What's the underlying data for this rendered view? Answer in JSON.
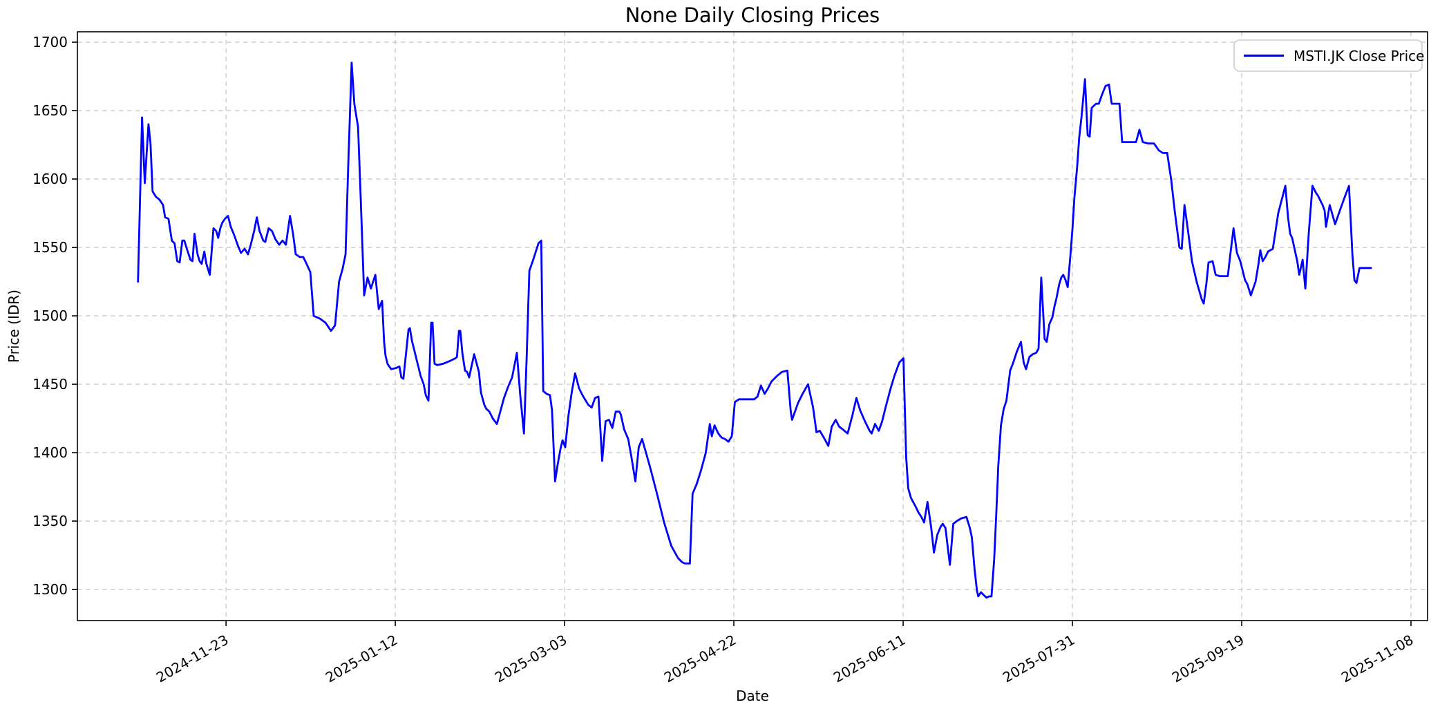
{
  "page": {
    "title": "None Daily Closing Prices"
  },
  "chart_data": {
    "type": "line",
    "title": "None Daily Closing Prices",
    "xlabel": "Date",
    "ylabel": "Price (IDR)",
    "grid": {
      "visible": true,
      "style": "dashed",
      "color": "#c9c9c9"
    },
    "line_color": "#0000ff",
    "legend": {
      "position": "upper right",
      "entries": [
        {
          "label": "MSTI.JK Close Price",
          "color": "#0000ff"
        }
      ]
    },
    "axes": {
      "x_start_date": "2024-10-28",
      "x_tick_labels": [
        "2024-11-23",
        "2025-01-12",
        "2025-03-03",
        "2025-04-22",
        "2025-06-11",
        "2025-07-31",
        "2025-09-19",
        "2025-11-08"
      ],
      "x_tick_offsets": [
        26,
        76,
        126,
        176,
        226,
        276,
        326,
        376
      ],
      "x_tick_rotation_deg": 30,
      "xlim_days": [
        -17.9,
        380.9
      ],
      "y_ticks": [
        1300,
        1350,
        1400,
        1450,
        1500,
        1550,
        1600,
        1650,
        1700
      ],
      "ylim": [
        1277.3,
        1707.6
      ]
    },
    "series": [
      {
        "name": "MSTI.JK Close Price",
        "color": "#0000ff",
        "x_days_from_start": [
          0,
          1.2,
          2,
          3.1,
          3.7,
          4.3,
          5.3,
          6.3,
          7.4,
          8,
          9,
          10,
          10.8,
          11.6,
          12.3,
          13.1,
          13.7,
          14.3,
          15.5,
          16.1,
          16.7,
          17.6,
          18.2,
          18.8,
          19.6,
          20.2,
          21.2,
          22.3,
          23.1,
          23.7,
          24.3,
          24.9,
          25.7,
          26.6,
          27.4,
          28.4,
          29.4,
          30.4,
          31.5,
          32.5,
          33.3,
          34.3,
          35.1,
          35.9,
          37,
          37.6,
          38.6,
          39.6,
          40.6,
          41.7,
          42.7,
          43.7,
          44.9,
          45.8,
          46.6,
          47.8,
          48.8,
          49.6,
          50.9,
          51.9,
          53.7,
          55.4,
          57,
          58.2,
          59.4,
          60.5,
          61.3,
          62.1,
          63.1,
          63.9,
          65,
          65.8,
          66.8,
          67.8,
          68.8,
          70.1,
          71.1,
          72.1,
          72.7,
          73.1,
          73.7,
          74.8,
          76.4,
          77.2,
          77.8,
          78.4,
          79.9,
          80.3,
          80.9,
          82.3,
          82.9,
          83.5,
          84.4,
          85,
          85.8,
          86.6,
          87,
          87.6,
          88.4,
          90.1,
          92.1,
          93.8,
          94.2,
          94.8,
          95.2,
          95.8,
          96.6,
          97.2,
          97.8,
          99.3,
          100.7,
          101.3,
          102.3,
          102.9,
          103.8,
          104.8,
          106,
          107,
          108.1,
          109.3,
          110.5,
          111.3,
          111.9,
          112.9,
          114,
          114.8,
          115.6,
          116.6,
          118.3,
          119.1,
          119.7,
          120.7,
          121.7,
          122.3,
          123.2,
          124,
          124.8,
          125.4,
          126.2,
          127.2,
          128.1,
          129.1,
          130.3,
          131.3,
          132,
          133,
          134,
          135,
          136,
          137.1,
          138.1,
          139.1,
          140.1,
          141.1,
          142.2,
          142.6,
          143.6,
          144.8,
          145.8,
          146.9,
          147.9,
          148.9,
          151.3,
          153.4,
          155.4,
          157.5,
          159.5,
          160.7,
          161.5,
          163,
          163.8,
          165,
          166.3,
          167.7,
          168.9,
          169.5,
          170.3,
          171.4,
          172.4,
          173.4,
          174.4,
          175.4,
          176.3,
          177.5,
          178.9,
          180.6,
          182,
          183,
          184,
          185.1,
          186.1,
          187.1,
          188.7,
          190.2,
          191.8,
          192.8,
          193.2,
          194.9,
          196.3,
          197.9,
          199.4,
          200.4,
          201.4,
          202.8,
          203.9,
          204.9,
          206.1,
          207.1,
          208.2,
          209.6,
          211,
          212.2,
          213.3,
          214.7,
          216.1,
          216.7,
          217.7,
          218.8,
          219.8,
          220.8,
          222.2,
          223.4,
          224.9,
          226.1,
          226.9,
          227.5,
          228.3,
          229.6,
          230.6,
          231.4,
          232.2,
          233.2,
          234.3,
          235.1,
          236.1,
          237.1,
          237.7,
          238.5,
          239.8,
          240.8,
          241.8,
          243.2,
          244.7,
          245.7,
          246.3,
          247.1,
          247.8,
          248.2,
          249,
          249.8,
          250.6,
          251.4,
          252.1,
          252.9,
          253.5,
          254.1,
          254.9,
          255.7,
          256.5,
          257.6,
          258.4,
          259.6,
          260.8,
          261.6,
          262.3,
          263.3,
          264.3,
          265.3,
          266,
          266.8,
          267.8,
          268.4,
          269.2,
          270.1,
          270.7,
          271.3,
          272.1,
          272.7,
          273.3,
          274,
          274.6,
          275.4,
          276,
          276.6,
          277.4,
          278,
          278.7,
          279.7,
          280.5,
          281.1,
          281.7,
          282.1,
          283,
          283.8,
          284.8,
          285.8,
          286.8,
          287.6,
          288.6,
          289.9,
          290.7,
          292.3,
          294,
          294.8,
          295.8,
          296.8,
          298.4,
          300.1,
          301.5,
          302.7,
          304,
          305.2,
          306.2,
          307.6,
          308.3,
          309.1,
          310.1,
          311.3,
          312.7,
          314.2,
          314.8,
          315.6,
          316.2,
          317.4,
          318.3,
          319.5,
          320.9,
          321.9,
          322.7,
          323.6,
          324.6,
          325.6,
          327,
          327.7,
          328.7,
          330.1,
          330.9,
          331.5,
          332.2,
          333,
          333.8,
          335.2,
          336.8,
          338.9,
          339.7,
          340.3,
          340.9,
          342.4,
          343,
          344,
          344.8,
          345.8,
          346.9,
          347.9,
          348.5,
          349.9,
          350.5,
          350.9,
          352,
          352.8,
          353.6,
          355,
          356.3,
          357.7,
          358.7,
          359.3,
          359.9,
          360.8,
          361.8,
          362.8,
          364.2
        ],
        "close_idr": [
          1525,
          1645,
          1597,
          1640,
          1626,
          1591,
          1587,
          1585,
          1581,
          1572,
          1571,
          1555,
          1553,
          1540,
          1539,
          1555,
          1555,
          1550,
          1541,
          1540,
          1560,
          1545,
          1540,
          1538,
          1547,
          1538,
          1530,
          1564,
          1562,
          1557,
          1564,
          1568,
          1571,
          1573,
          1565,
          1559,
          1552,
          1546,
          1549,
          1545,
          1552,
          1562,
          1572,
          1562,
          1555,
          1554,
          1564,
          1562,
          1556,
          1552,
          1555,
          1552,
          1573,
          1560,
          1545,
          1543,
          1543,
          1539,
          1532,
          1500,
          1498,
          1495,
          1489,
          1493,
          1525,
          1535,
          1545,
          1610,
          1685,
          1655,
          1638,
          1585,
          1515,
          1528,
          1520,
          1530,
          1505,
          1511,
          1481,
          1471,
          1465,
          1461,
          1462,
          1463,
          1455,
          1454,
          1490,
          1491,
          1482,
          1468,
          1462,
          1456,
          1450,
          1442,
          1438,
          1495,
          1495,
          1465,
          1464,
          1465,
          1467,
          1469,
          1470,
          1489,
          1489,
          1473,
          1460,
          1459,
          1455,
          1472,
          1459,
          1444,
          1435,
          1432,
          1430,
          1425,
          1421,
          1430,
          1440,
          1448,
          1455,
          1465,
          1473,
          1442,
          1414,
          1470,
          1533,
          1540,
          1553,
          1555,
          1445,
          1443,
          1442,
          1431,
          1379,
          1392,
          1403,
          1409,
          1404,
          1428,
          1444,
          1458,
          1447,
          1442,
          1439,
          1435,
          1433,
          1440,
          1441,
          1394,
          1423,
          1424,
          1418,
          1430,
          1430,
          1428,
          1417,
          1410,
          1396,
          1379,
          1404,
          1410,
          1389,
          1369,
          1349,
          1332,
          1323,
          1320,
          1319,
          1319,
          1370,
          1377,
          1387,
          1400,
          1421,
          1412,
          1420,
          1414,
          1411,
          1410,
          1408,
          1412,
          1437,
          1439,
          1439,
          1439,
          1439,
          1441,
          1449,
          1443,
          1447,
          1452,
          1456,
          1459,
          1460,
          1430,
          1424,
          1436,
          1443,
          1450,
          1433,
          1415,
          1416,
          1410,
          1405,
          1419,
          1424,
          1419,
          1417,
          1414,
          1427,
          1440,
          1431,
          1423,
          1416,
          1414,
          1421,
          1416,
          1423,
          1433,
          1446,
          1456,
          1466,
          1469,
          1397,
          1374,
          1367,
          1361,
          1356,
          1353,
          1349,
          1364,
          1345,
          1327,
          1340,
          1346,
          1348,
          1345,
          1318,
          1348,
          1350,
          1352,
          1353,
          1345,
          1338,
          1315,
          1299,
          1295,
          1298,
          1296,
          1294,
          1295,
          1295,
          1322,
          1355,
          1390,
          1420,
          1432,
          1438,
          1460,
          1465,
          1474,
          1481,
          1466,
          1461,
          1470,
          1472,
          1473,
          1476,
          1528,
          1483,
          1481,
          1494,
          1499,
          1507,
          1513,
          1523,
          1528,
          1530,
          1526,
          1521,
          1544,
          1563,
          1587,
          1609,
          1630,
          1646,
          1673,
          1632,
          1631,
          1652,
          1653,
          1655,
          1655,
          1662,
          1668,
          1669,
          1655,
          1655,
          1655,
          1627,
          1627,
          1627,
          1627,
          1636,
          1627,
          1626,
          1626,
          1621,
          1619,
          1619,
          1599,
          1577,
          1550,
          1549,
          1581,
          1563,
          1540,
          1525,
          1512,
          1509,
          1524,
          1539,
          1540,
          1530,
          1529,
          1529,
          1529,
          1546,
          1564,
          1546,
          1540,
          1526,
          1523,
          1515,
          1525,
          1537,
          1548,
          1540,
          1543,
          1547,
          1549,
          1575,
          1595,
          1572,
          1560,
          1557,
          1540,
          1530,
          1541,
          1520,
          1560,
          1595,
          1590,
          1588,
          1581,
          1577,
          1565,
          1581,
          1574,
          1567,
          1577,
          1586,
          1595,
          1545,
          1526,
          1524,
          1535,
          1535,
          1535,
          1535
        ]
      }
    ]
  }
}
